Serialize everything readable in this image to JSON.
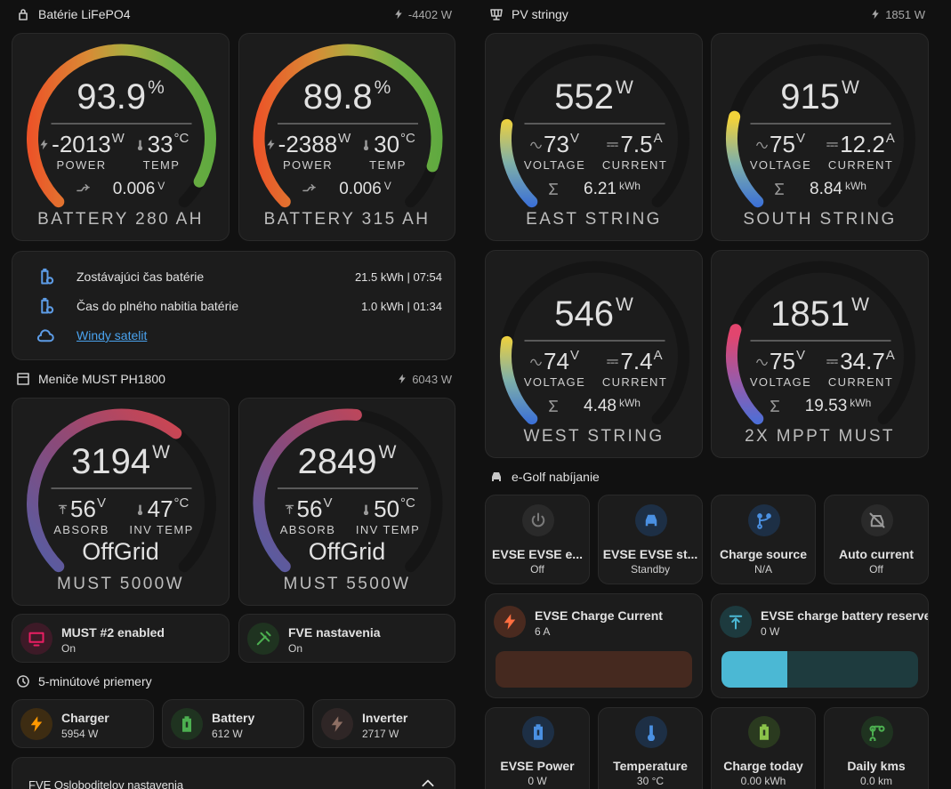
{
  "battery": {
    "title": "Batérie LiFePO4",
    "power": "-4402 W",
    "gauges": [
      {
        "value": 93.9,
        "unit": "%",
        "left": {
          "value": -2013,
          "unit": "W",
          "label": "POWER"
        },
        "right": {
          "value": 33,
          "unit": "°C",
          "label": "TEMP"
        },
        "bottom": {
          "value": 0.006,
          "unit": "V"
        },
        "name": "BATTERY 280 AH"
      },
      {
        "value": 89.8,
        "unit": "%",
        "left": {
          "value": -2388,
          "unit": "W",
          "label": "POWER"
        },
        "right": {
          "value": 30,
          "unit": "°C",
          "label": "TEMP"
        },
        "bottom": {
          "value": 0.006,
          "unit": "V"
        },
        "name": "BATTERY 315 AH"
      }
    ],
    "info": [
      {
        "label": "Zostávajúci čas batérie",
        "value": "21.5 kWh | 07:54"
      },
      {
        "label": "Čas do plného nabitia batérie",
        "value": "1.0 kWh | 01:34"
      }
    ],
    "link": "Windy satelit"
  },
  "inverters": {
    "title": "Meniče MUST PH1800",
    "power": "6043 W",
    "gauges": [
      {
        "value": 3194,
        "unit": "W",
        "left": {
          "value": 56,
          "unit": "V",
          "label": "ABSORB"
        },
        "right": {
          "value": 47,
          "unit": "°C",
          "label": "INV TEMP"
        },
        "status": "OffGrid",
        "name": "MUST 5000W"
      },
      {
        "value": 2849,
        "unit": "W",
        "left": {
          "value": 56,
          "unit": "V",
          "label": "ABSORB"
        },
        "right": {
          "value": 50,
          "unit": "°C",
          "label": "INV TEMP"
        },
        "status": "OffGrid",
        "name": "MUST 5500W"
      }
    ],
    "tiles": [
      {
        "name": "MUST #2 enabled",
        "state": "On"
      },
      {
        "name": "FVE nastavenia",
        "state": "On"
      }
    ]
  },
  "averages": {
    "title": "5-minútové priemery",
    "tiles": [
      {
        "name": "Charger",
        "state": "5954 W"
      },
      {
        "name": "Battery",
        "state": "612 W"
      },
      {
        "name": "Inverter",
        "state": "2717 W"
      }
    ]
  },
  "settings": {
    "title": "FVE Osloboditelov nastavenia"
  },
  "pv": {
    "title": "PV stringy",
    "power": "1851 W",
    "gauges": [
      {
        "value": 552,
        "unit": "W",
        "left": {
          "value": 73,
          "unit": "V",
          "label": "VOLTAGE"
        },
        "right": {
          "value": 7.5,
          "unit": "A",
          "label": "CURRENT"
        },
        "bottom": {
          "value": 6.21,
          "unit": "kWh"
        },
        "name": "EAST STRING"
      },
      {
        "value": 915,
        "unit": "W",
        "left": {
          "value": 75,
          "unit": "V",
          "label": "VOLTAGE"
        },
        "right": {
          "value": 12.2,
          "unit": "A",
          "label": "CURRENT"
        },
        "bottom": {
          "value": 8.84,
          "unit": "kWh"
        },
        "name": "SOUTH STRING"
      },
      {
        "value": 546,
        "unit": "W",
        "left": {
          "value": 74,
          "unit": "V",
          "label": "VOLTAGE"
        },
        "right": {
          "value": 7.4,
          "unit": "A",
          "label": "CURRENT"
        },
        "bottom": {
          "value": 4.48,
          "unit": "kWh"
        },
        "name": "WEST STRING"
      },
      {
        "value": 1851,
        "unit": "W",
        "left": {
          "value": 75,
          "unit": "V",
          "label": "VOLTAGE"
        },
        "right": {
          "value": 34.7,
          "unit": "A",
          "label": "CURRENT"
        },
        "bottom": {
          "value": 19.53,
          "unit": "kWh"
        },
        "name": "2X MPPT MUST"
      }
    ]
  },
  "egolf": {
    "title": "e-Golf nabíjanie",
    "buttons": [
      {
        "name": "EVSE EVSE e...",
        "state": "Off"
      },
      {
        "name": "EVSE EVSE st...",
        "state": "Standby"
      },
      {
        "name": "Charge source",
        "state": "N/A"
      },
      {
        "name": "Auto current",
        "state": "Off"
      }
    ],
    "sliders": [
      {
        "name": "EVSE Charge Current",
        "state": "6 A"
      },
      {
        "name": "EVSE charge battery reserve",
        "state": "0 W"
      }
    ],
    "stats": [
      {
        "name": "EVSE Power",
        "state": "0 W"
      },
      {
        "name": "Temperature",
        "state": "30 °C"
      },
      {
        "name": "Charge today",
        "state": "0.00 kWh"
      },
      {
        "name": "Daily kms",
        "state": "0.0 km"
      }
    ]
  }
}
